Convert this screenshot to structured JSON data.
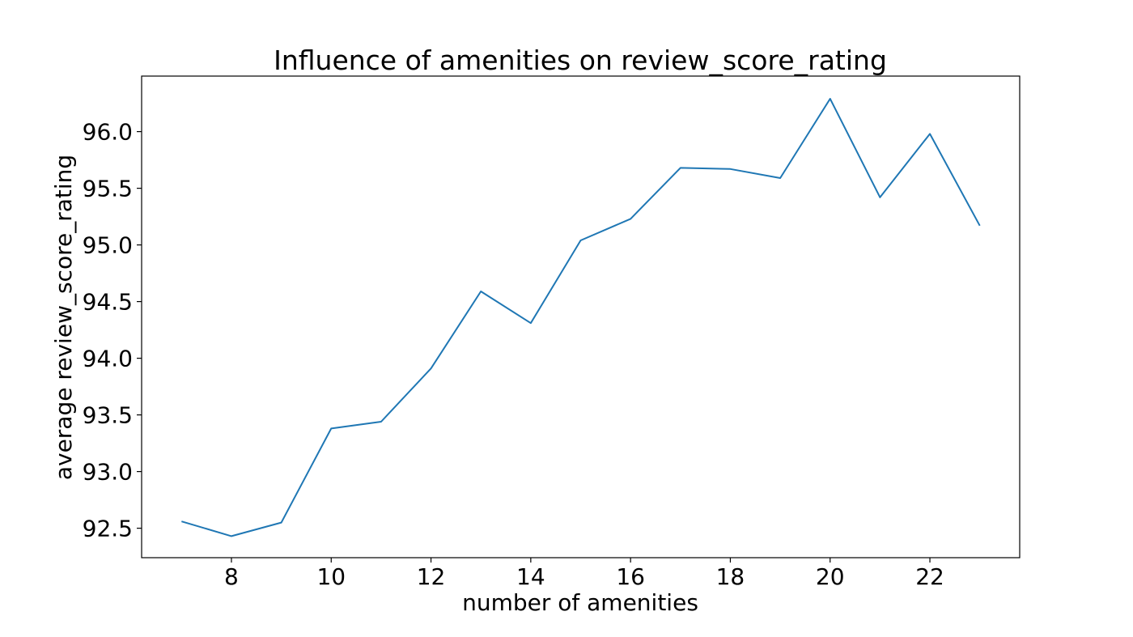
{
  "chart_data": {
    "type": "line",
    "title": "Influence of amenities on review_score_rating",
    "xlabel": "number of amenities",
    "ylabel": "average review_score_rating",
    "xlim": [
      6.2,
      23.8
    ],
    "ylim": [
      92.24,
      96.49
    ],
    "x_ticks": [
      8,
      10,
      12,
      14,
      16,
      18,
      20,
      22
    ],
    "x_tick_labels": [
      "8",
      "10",
      "12",
      "14",
      "16",
      "18",
      "20",
      "22"
    ],
    "y_ticks": [
      92.5,
      93.0,
      93.5,
      94.0,
      94.5,
      95.0,
      95.5,
      96.0
    ],
    "y_tick_labels": [
      "92.5",
      "93.0",
      "93.5",
      "94.0",
      "94.5",
      "95.0",
      "95.5",
      "96.0"
    ],
    "grid": false,
    "legend": "none",
    "series": [
      {
        "color": "#1f77b4",
        "x": [
          7,
          8,
          9,
          10,
          11,
          12,
          13,
          14,
          15,
          16,
          17,
          18,
          19,
          20,
          21,
          22,
          23
        ],
        "values": [
          92.56,
          92.43,
          92.55,
          93.38,
          93.44,
          93.91,
          94.59,
          94.31,
          95.04,
          95.23,
          95.68,
          95.67,
          95.59,
          96.29,
          95.42,
          95.98,
          95.17
        ]
      }
    ]
  }
}
